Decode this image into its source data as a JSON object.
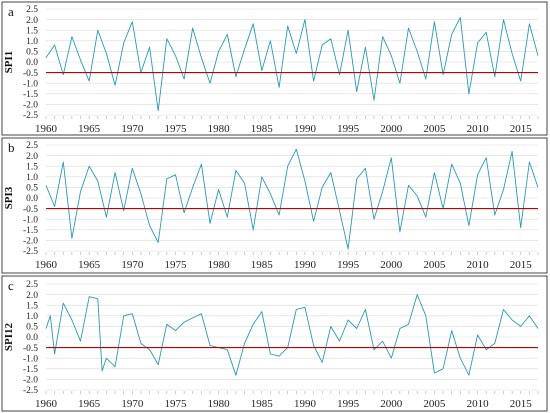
{
  "colors": {
    "series": "#2A9AB7",
    "threshold": "#C00000",
    "grid": "#D9D9D9"
  },
  "chart_data": [
    {
      "type": "line",
      "panel_label": "a",
      "ylabel": "SPI1",
      "ylim": [
        -2.5,
        2.5
      ],
      "yticks": [
        "2.5",
        "2.0",
        "1.5",
        "1.0",
        "0.5",
        "0.0",
        "-0.5",
        "-1.0",
        "-1.5",
        "-2.0",
        "-2.5"
      ],
      "xlim": [
        1960,
        2017
      ],
      "xticks": [
        "1960",
        "1965",
        "1970",
        "1975",
        "1980",
        "1985",
        "1990",
        "1995",
        "2000",
        "2005",
        "2010",
        "2015"
      ],
      "threshold": -0.5,
      "grid": true,
      "series": [
        {
          "x": [
            1960,
            1961,
            1962,
            1963,
            1964,
            1965,
            1966,
            1967,
            1968,
            1969,
            1970,
            1971,
            1972,
            1973,
            1974,
            1975,
            1976,
            1977,
            1978,
            1979,
            1980,
            1981,
            1982,
            1983,
            1984,
            1985,
            1986,
            1987,
            1988,
            1989,
            1990,
            1991,
            1992,
            1993,
            1994,
            1995,
            1996,
            1997,
            1998,
            1999,
            2000,
            2001,
            2002,
            2003,
            2004,
            2005,
            2006,
            2007,
            2008,
            2009,
            2010,
            2011,
            2012,
            2013,
            2014,
            2015,
            2016,
            2017
          ],
          "y": [
            0.2,
            0.8,
            -0.6,
            1.2,
            0.1,
            -0.9,
            1.5,
            0.4,
            -1.1,
            0.9,
            1.9,
            -0.5,
            0.7,
            -2.3,
            1.1,
            0.3,
            -0.8,
            1.6,
            0.2,
            -1.0,
            0.5,
            1.3,
            -0.7,
            0.6,
            1.8,
            -0.4,
            1.0,
            -1.2,
            1.7,
            0.4,
            2.0,
            -0.9,
            0.8,
            1.1,
            -0.6,
            1.5,
            -1.4,
            0.7,
            -1.8,
            1.2,
            0.3,
            -1.0,
            1.6,
            0.5,
            -0.8,
            1.9,
            -0.6,
            1.3,
            2.1,
            -1.5,
            0.9,
            1.4,
            -0.7,
            2.0,
            0.4,
            -0.9,
            1.8,
            0.3
          ]
        }
      ]
    },
    {
      "type": "line",
      "panel_label": "b",
      "ylabel": "SPI3",
      "ylim": [
        -2.5,
        2.5
      ],
      "yticks": [
        "2.5",
        "2.0",
        "1.5",
        "1.0",
        "0.5",
        "0.0",
        "-0.5",
        "-1.0",
        "-1.5",
        "-2.0",
        "-2.5"
      ],
      "xlim": [
        1960,
        2017
      ],
      "xticks": [
        "1960",
        "1965",
        "1970",
        "1975",
        "1980",
        "1985",
        "1990",
        "1995",
        "2000",
        "2005",
        "2010",
        "2015"
      ],
      "threshold": -0.5,
      "grid": true,
      "series": [
        {
          "x": [
            1960,
            1961,
            1962,
            1963,
            1964,
            1965,
            1966,
            1967,
            1968,
            1969,
            1970,
            1971,
            1972,
            1973,
            1974,
            1975,
            1976,
            1977,
            1978,
            1979,
            1980,
            1981,
            1982,
            1983,
            1984,
            1985,
            1986,
            1987,
            1988,
            1989,
            1990,
            1991,
            1992,
            1993,
            1994,
            1995,
            1996,
            1997,
            1998,
            1999,
            2000,
            2001,
            2002,
            2003,
            2004,
            2005,
            2006,
            2007,
            2008,
            2009,
            2010,
            2011,
            2012,
            2013,
            2014,
            2015,
            2016,
            2017
          ],
          "y": [
            0.6,
            -0.4,
            1.7,
            -1.9,
            0.3,
            1.5,
            0.8,
            -0.9,
            1.2,
            -0.6,
            1.4,
            0.2,
            -1.3,
            -2.1,
            0.9,
            1.1,
            -0.7,
            0.5,
            1.6,
            -1.2,
            0.4,
            -0.9,
            1.3,
            0.7,
            -1.5,
            1.0,
            0.2,
            -0.8,
            1.5,
            2.3,
            0.8,
            -1.1,
            0.5,
            1.2,
            -0.6,
            -2.4,
            0.9,
            1.4,
            -1.0,
            0.3,
            1.9,
            -1.6,
            0.6,
            0.1,
            -0.9,
            1.2,
            -0.5,
            1.6,
            0.7,
            -1.3,
            1.1,
            1.9,
            -0.8,
            0.4,
            2.2,
            -1.4,
            1.7,
            0.5
          ]
        }
      ]
    },
    {
      "type": "line",
      "panel_label": "c",
      "ylabel": "SPI12",
      "ylim": [
        -2.5,
        2.5
      ],
      "yticks": [
        "2.5",
        "2.0",
        "1.5",
        "1.0",
        "0.5",
        "0.0",
        "-0.5",
        "-1.0",
        "-1.5",
        "-2.0",
        "-2.5"
      ],
      "xlim": [
        1960,
        2017
      ],
      "xticks": [
        "1960",
        "1965",
        "1970",
        "1975",
        "1980",
        "1985",
        "1990",
        "1995",
        "2000",
        "2005",
        "2010",
        "2015"
      ],
      "threshold": -0.5,
      "grid": true,
      "series": [
        {
          "x": [
            1960,
            1960.5,
            1961,
            1962,
            1963,
            1964,
            1965,
            1966,
            1966.5,
            1967,
            1968,
            1969,
            1970,
            1971,
            1972,
            1973,
            1974,
            1975,
            1976,
            1977,
            1978,
            1979,
            1980,
            1981,
            1982,
            1983,
            1984,
            1985,
            1986,
            1987,
            1988,
            1989,
            1990,
            1991,
            1992,
            1993,
            1994,
            1995,
            1996,
            1997,
            1998,
            1999,
            2000,
            2001,
            2002,
            2003,
            2004,
            2005,
            2006,
            2007,
            2008,
            2009,
            2010,
            2011,
            2012,
            2013,
            2014,
            2015,
            2016,
            2017
          ],
          "y": [
            0.4,
            1.0,
            -0.8,
            1.6,
            0.8,
            -0.2,
            1.9,
            1.8,
            -1.6,
            -1.0,
            -1.4,
            1.0,
            1.1,
            -0.3,
            -0.6,
            -1.3,
            0.6,
            0.3,
            0.7,
            0.9,
            1.1,
            -0.4,
            -0.5,
            -0.6,
            -1.8,
            -0.3,
            0.6,
            1.2,
            -0.8,
            -0.9,
            -0.5,
            1.3,
            1.4,
            -0.4,
            -1.2,
            0.5,
            -0.2,
            0.8,
            0.4,
            1.3,
            -0.6,
            -0.2,
            -1.0,
            0.4,
            0.6,
            2.0,
            1.0,
            -1.7,
            -1.5,
            0.3,
            -1.0,
            -1.8,
            0.1,
            -0.6,
            -0.3,
            1.3,
            0.8,
            0.5,
            1.0,
            0.4
          ]
        }
      ]
    }
  ]
}
